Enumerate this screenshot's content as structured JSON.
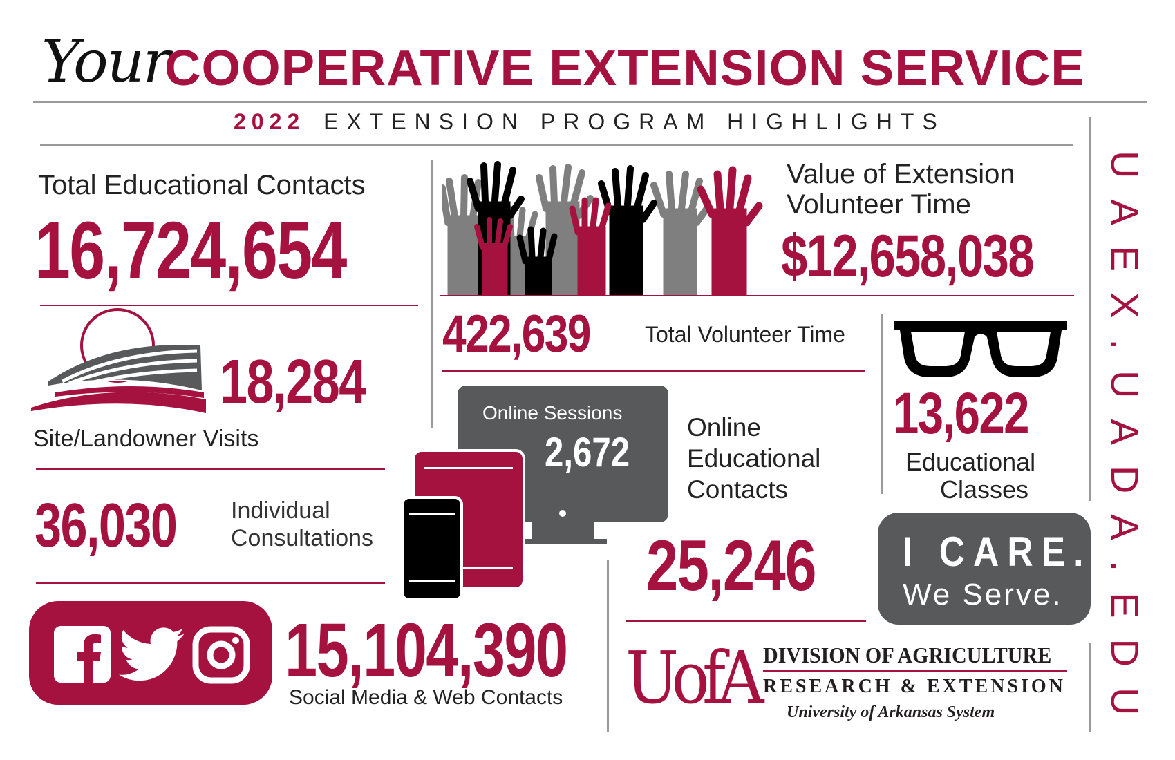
{
  "header": {
    "your": "Your",
    "title": "COOPERATIVE EXTENSION SERVICE",
    "year": "2022",
    "subtitle": "EXTENSION PROGRAM HIGHLIGHTS"
  },
  "stats": {
    "total_contacts": {
      "label": "Total Educational Contacts",
      "value": "16,724,654"
    },
    "site_visits": {
      "value": "18,284",
      "label": "Site/Landowner Visits"
    },
    "consultations": {
      "value": "36,030",
      "label_line1": "Individual",
      "label_line2": "Consultations"
    },
    "social": {
      "value": "15,104,390",
      "label": "Social Media & Web Contacts"
    },
    "volunteer_value": {
      "label_line1": "Value of Extension",
      "label_line2": "Volunteer Time",
      "value": "$12,658,038"
    },
    "volunteer_time": {
      "value": "422,639",
      "label": "Total Volunteer Time"
    },
    "online_sessions": {
      "label": "Online Sessions",
      "value": "2,672"
    },
    "online_contacts": {
      "label_line1": "Online",
      "label_line2": "Educational",
      "label_line3": "Contacts",
      "value": "25,246"
    },
    "classes": {
      "value": "13,622",
      "label_line1": "Educational",
      "label_line2": "Classes"
    }
  },
  "badge": {
    "line1": "I CARE.",
    "line2": "We Serve."
  },
  "logo": {
    "mark": "UofA",
    "line1": "DIVISION OF AGRICULTURE",
    "line2": "RESEARCH & EXTENSION",
    "line3": "University of Arkansas System"
  },
  "sidebar": {
    "url": "UAEX.UADA.EDU"
  },
  "colors": {
    "crimson": "#a6123f",
    "dark_gray": "#58595b",
    "mid_gray": "#7f7f7f",
    "black": "#000000"
  },
  "icons": [
    "farm-field-icon",
    "raised-hands-icon",
    "glasses-icon",
    "computer-monitor-icon",
    "tablet-icon",
    "smartphone-icon",
    "facebook-icon",
    "twitter-icon",
    "instagram-icon"
  ]
}
